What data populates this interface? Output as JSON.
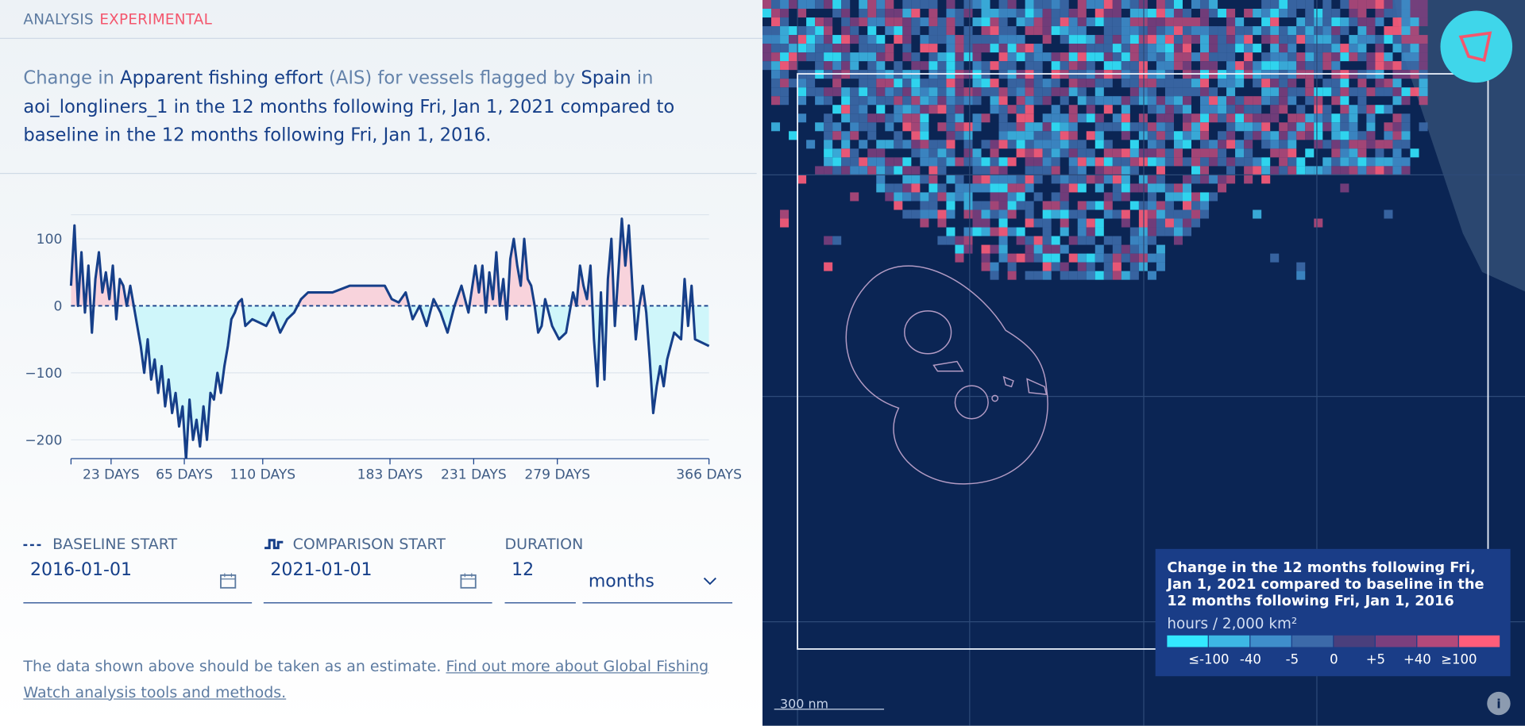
{
  "header": {
    "title": "ANALYSIS",
    "badge": "EXPERIMENTAL"
  },
  "description": [
    {
      "text": "Change in ",
      "strong": false
    },
    {
      "text": "Apparent fishing effort",
      "strong": true
    },
    {
      "text": " (AIS) for vessels flagged by ",
      "strong": false
    },
    {
      "text": "Spain",
      "strong": true
    },
    {
      "text": " in ",
      "strong": false
    },
    {
      "text": "aoi_longliners_1 in the 12 months following Fri, Jan 1, 2021 compared to baseline in the 12 months following Fri, Jan 1, 2016.",
      "strong": true
    }
  ],
  "chart_data": {
    "type": "line",
    "color": "#163f89",
    "fill_above": "#f8d3dc",
    "fill_below": "#cff6fa",
    "grid": true,
    "xlim": [
      0,
      366
    ],
    "ylim": [
      -228,
      136
    ],
    "xticks": [
      {
        "value": 23,
        "label": "23 DAYS"
      },
      {
        "value": 65,
        "label": "65 DAYS"
      },
      {
        "value": 110,
        "label": "110 DAYS"
      },
      {
        "value": 183,
        "label": "183 DAYS"
      },
      {
        "value": 231,
        "label": "231 DAYS"
      },
      {
        "value": 279,
        "label": "279 DAYS"
      },
      {
        "value": 366,
        "label": "366 DAYS"
      }
    ],
    "yticks": [
      100,
      0,
      {
        "value": -100,
        "label": "−100"
      },
      {
        "value": -200,
        "label": "−200"
      }
    ],
    "x": [
      0,
      2,
      4,
      6,
      8,
      10,
      12,
      14,
      16,
      18,
      20,
      22,
      24,
      26,
      28,
      30,
      32,
      34,
      36,
      38,
      40,
      42,
      44,
      46,
      48,
      50,
      52,
      54,
      56,
      58,
      60,
      62,
      64,
      66,
      68,
      70,
      72,
      74,
      76,
      78,
      80,
      82,
      84,
      86,
      88,
      90,
      92,
      94,
      96,
      98,
      100,
      104,
      108,
      112,
      116,
      120,
      124,
      128,
      132,
      136,
      140,
      150,
      160,
      170,
      180,
      184,
      188,
      192,
      196,
      200,
      204,
      208,
      212,
      216,
      220,
      224,
      228,
      232,
      234,
      236,
      238,
      240,
      242,
      244,
      246,
      248,
      250,
      252,
      254,
      256,
      258,
      260,
      262,
      264,
      266,
      268,
      270,
      272,
      276,
      280,
      284,
      288,
      290,
      292,
      294,
      296,
      298,
      300,
      302,
      304,
      306,
      308,
      310,
      312,
      316,
      318,
      320,
      322,
      324,
      326,
      328,
      330,
      332,
      334,
      336,
      338,
      340,
      342,
      344,
      346,
      350,
      352,
      354,
      356,
      358,
      366
    ],
    "values": [
      30,
      120,
      0,
      80,
      -10,
      60,
      -40,
      40,
      80,
      20,
      50,
      10,
      60,
      -20,
      40,
      30,
      0,
      30,
      0,
      -30,
      -60,
      -100,
      -50,
      -110,
      -80,
      -130,
      -90,
      -150,
      -110,
      -160,
      -130,
      -180,
      -150,
      -230,
      -140,
      -200,
      -170,
      -210,
      -150,
      -200,
      -130,
      -140,
      -100,
      -130,
      -90,
      -60,
      -20,
      -10,
      5,
      10,
      -30,
      -20,
      -25,
      -30,
      -10,
      -40,
      -20,
      -10,
      10,
      20,
      20,
      20,
      30,
      30,
      30,
      10,
      5,
      20,
      -20,
      0,
      -30,
      10,
      -10,
      -40,
      0,
      30,
      -10,
      60,
      20,
      60,
      -10,
      50,
      10,
      80,
      0,
      40,
      -20,
      70,
      100,
      60,
      30,
      100,
      40,
      30,
      0,
      -40,
      -30,
      10,
      -30,
      -50,
      -40,
      20,
      0,
      60,
      30,
      10,
      60,
      -50,
      -120,
      20,
      -110,
      40,
      100,
      -30,
      130,
      60,
      120,
      30,
      -50,
      0,
      30,
      -10,
      -80,
      -160,
      -120,
      -90,
      -120,
      -80,
      -60,
      -40,
      -50,
      40,
      -30,
      30,
      -50,
      -60
    ]
  },
  "form": {
    "baseline": {
      "label": "BASELINE START",
      "value": "2016-01-01"
    },
    "comparison": {
      "label": "COMPARISON START",
      "value": "2021-01-01"
    },
    "duration": {
      "label": "DURATION",
      "value": "12",
      "unit": "months"
    }
  },
  "footer": {
    "text": "The data shown above should be taken as an estimate. ",
    "link": "Find out more about Global Fishing Watch analysis tools and methods."
  },
  "map": {
    "legend": {
      "title": "Change in the 12 months following Fri, Jan 1, 2021 compared to baseline in the 12 months following Fri, Jan 1, 2016",
      "unit": "hours / 2,000 km²",
      "colors": [
        "#33e8ff",
        "#3db7e4",
        "#3f8ecb",
        "#3c6aa9",
        "#4a3f7c",
        "#7b3f7d",
        "#b3497a",
        "#ff5d7a"
      ],
      "labels": [
        "≤-100",
        "-40",
        "-5",
        "0",
        "+5",
        "+40",
        "≥100"
      ]
    },
    "scale": "300 nm"
  }
}
